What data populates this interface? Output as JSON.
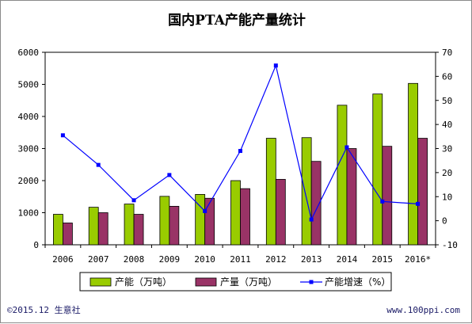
{
  "chart_data": {
    "type": "bar",
    "title": "国内PTA产能产量统计",
    "categories": [
      "2006",
      "2007",
      "2008",
      "2009",
      "2010",
      "2011",
      "2012",
      "2013",
      "2014",
      "2015",
      "2016*"
    ],
    "series": [
      {
        "name": "产能（万吨）",
        "type": "bar",
        "axis": "left",
        "color": "#99cc00",
        "values": [
          950,
          1170,
          1270,
          1510,
          1570,
          2000,
          3320,
          3340,
          4350,
          4700,
          5030
        ]
      },
      {
        "name": "产量（万吨）",
        "type": "bar",
        "axis": "left",
        "color": "#993366",
        "values": [
          680,
          1000,
          950,
          1200,
          1450,
          1750,
          2040,
          2600,
          3000,
          3070,
          3320
        ]
      },
      {
        "name": "产能增速（%）",
        "type": "line",
        "axis": "right",
        "color": "#0000ff",
        "values": [
          35.5,
          23.2,
          8.5,
          19,
          4,
          29,
          64.5,
          0.5,
          30.5,
          8,
          7
        ]
      }
    ],
    "ylim_left": [
      0,
      6000
    ],
    "yticks_left": [
      "0",
      "1000",
      "2000",
      "3000",
      "4000",
      "5000",
      "6000"
    ],
    "ylim_right": [
      -10,
      70
    ],
    "yticks_right": [
      "-10",
      "0",
      "10",
      "20",
      "30",
      "40",
      "50",
      "60",
      "70"
    ],
    "grid": false,
    "legend": "bottom"
  },
  "footer": {
    "left": "©2015.12 生意社",
    "right": "www.100ppi.com"
  }
}
